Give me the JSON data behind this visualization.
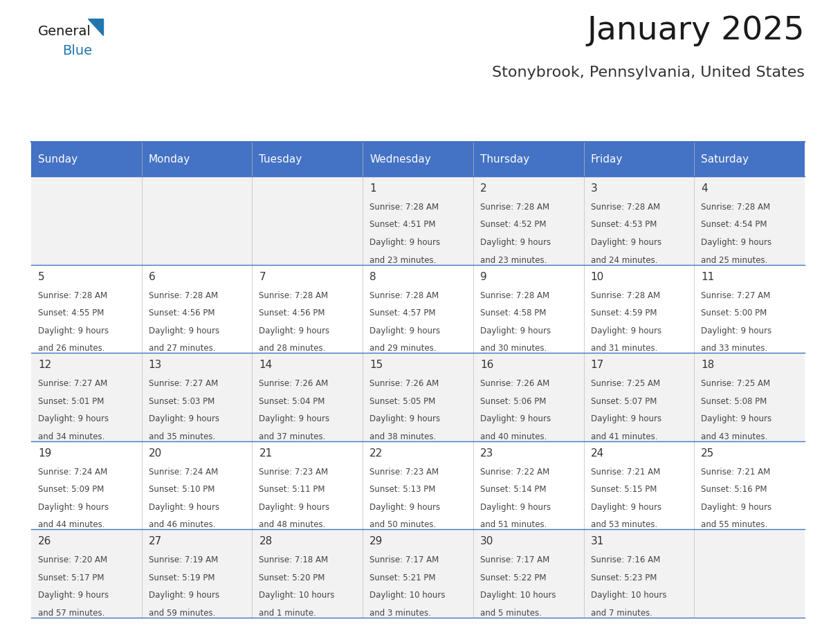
{
  "title": "January 2025",
  "subtitle": "Stonybrook, Pennsylvania, United States",
  "days_of_week": [
    "Sunday",
    "Monday",
    "Tuesday",
    "Wednesday",
    "Thursday",
    "Friday",
    "Saturday"
  ],
  "header_bg": "#4472C4",
  "header_text": "#FFFFFF",
  "row_bg_odd": "#FFFFFF",
  "row_bg_even": "#F2F2F2",
  "line_color": "#4472C4",
  "text_color": "#333333",
  "calendar_data": [
    [
      {
        "day": "",
        "sunrise": "",
        "sunset": "",
        "daylight": ""
      },
      {
        "day": "",
        "sunrise": "",
        "sunset": "",
        "daylight": ""
      },
      {
        "day": "",
        "sunrise": "",
        "sunset": "",
        "daylight": ""
      },
      {
        "day": "1",
        "sunrise": "7:28 AM",
        "sunset": "4:51 PM",
        "daylight": "9 hours\nand 23 minutes."
      },
      {
        "day": "2",
        "sunrise": "7:28 AM",
        "sunset": "4:52 PM",
        "daylight": "9 hours\nand 23 minutes."
      },
      {
        "day": "3",
        "sunrise": "7:28 AM",
        "sunset": "4:53 PM",
        "daylight": "9 hours\nand 24 minutes."
      },
      {
        "day": "4",
        "sunrise": "7:28 AM",
        "sunset": "4:54 PM",
        "daylight": "9 hours\nand 25 minutes."
      }
    ],
    [
      {
        "day": "5",
        "sunrise": "7:28 AM",
        "sunset": "4:55 PM",
        "daylight": "9 hours\nand 26 minutes."
      },
      {
        "day": "6",
        "sunrise": "7:28 AM",
        "sunset": "4:56 PM",
        "daylight": "9 hours\nand 27 minutes."
      },
      {
        "day": "7",
        "sunrise": "7:28 AM",
        "sunset": "4:56 PM",
        "daylight": "9 hours\nand 28 minutes."
      },
      {
        "day": "8",
        "sunrise": "7:28 AM",
        "sunset": "4:57 PM",
        "daylight": "9 hours\nand 29 minutes."
      },
      {
        "day": "9",
        "sunrise": "7:28 AM",
        "sunset": "4:58 PM",
        "daylight": "9 hours\nand 30 minutes."
      },
      {
        "day": "10",
        "sunrise": "7:28 AM",
        "sunset": "4:59 PM",
        "daylight": "9 hours\nand 31 minutes."
      },
      {
        "day": "11",
        "sunrise": "7:27 AM",
        "sunset": "5:00 PM",
        "daylight": "9 hours\nand 33 minutes."
      }
    ],
    [
      {
        "day": "12",
        "sunrise": "7:27 AM",
        "sunset": "5:01 PM",
        "daylight": "9 hours\nand 34 minutes."
      },
      {
        "day": "13",
        "sunrise": "7:27 AM",
        "sunset": "5:03 PM",
        "daylight": "9 hours\nand 35 minutes."
      },
      {
        "day": "14",
        "sunrise": "7:26 AM",
        "sunset": "5:04 PM",
        "daylight": "9 hours\nand 37 minutes."
      },
      {
        "day": "15",
        "sunrise": "7:26 AM",
        "sunset": "5:05 PM",
        "daylight": "9 hours\nand 38 minutes."
      },
      {
        "day": "16",
        "sunrise": "7:26 AM",
        "sunset": "5:06 PM",
        "daylight": "9 hours\nand 40 minutes."
      },
      {
        "day": "17",
        "sunrise": "7:25 AM",
        "sunset": "5:07 PM",
        "daylight": "9 hours\nand 41 minutes."
      },
      {
        "day": "18",
        "sunrise": "7:25 AM",
        "sunset": "5:08 PM",
        "daylight": "9 hours\nand 43 minutes."
      }
    ],
    [
      {
        "day": "19",
        "sunrise": "7:24 AM",
        "sunset": "5:09 PM",
        "daylight": "9 hours\nand 44 minutes."
      },
      {
        "day": "20",
        "sunrise": "7:24 AM",
        "sunset": "5:10 PM",
        "daylight": "9 hours\nand 46 minutes."
      },
      {
        "day": "21",
        "sunrise": "7:23 AM",
        "sunset": "5:11 PM",
        "daylight": "9 hours\nand 48 minutes."
      },
      {
        "day": "22",
        "sunrise": "7:23 AM",
        "sunset": "5:13 PM",
        "daylight": "9 hours\nand 50 minutes."
      },
      {
        "day": "23",
        "sunrise": "7:22 AM",
        "sunset": "5:14 PM",
        "daylight": "9 hours\nand 51 minutes."
      },
      {
        "day": "24",
        "sunrise": "7:21 AM",
        "sunset": "5:15 PM",
        "daylight": "9 hours\nand 53 minutes."
      },
      {
        "day": "25",
        "sunrise": "7:21 AM",
        "sunset": "5:16 PM",
        "daylight": "9 hours\nand 55 minutes."
      }
    ],
    [
      {
        "day": "26",
        "sunrise": "7:20 AM",
        "sunset": "5:17 PM",
        "daylight": "9 hours\nand 57 minutes."
      },
      {
        "day": "27",
        "sunrise": "7:19 AM",
        "sunset": "5:19 PM",
        "daylight": "9 hours\nand 59 minutes."
      },
      {
        "day": "28",
        "sunrise": "7:18 AM",
        "sunset": "5:20 PM",
        "daylight": "10 hours\nand 1 minute."
      },
      {
        "day": "29",
        "sunrise": "7:17 AM",
        "sunset": "5:21 PM",
        "daylight": "10 hours\nand 3 minutes."
      },
      {
        "day": "30",
        "sunrise": "7:17 AM",
        "sunset": "5:22 PM",
        "daylight": "10 hours\nand 5 minutes."
      },
      {
        "day": "31",
        "sunrise": "7:16 AM",
        "sunset": "5:23 PM",
        "daylight": "10 hours\nand 7 minutes."
      },
      {
        "day": "",
        "sunrise": "",
        "sunset": "",
        "daylight": ""
      }
    ]
  ]
}
